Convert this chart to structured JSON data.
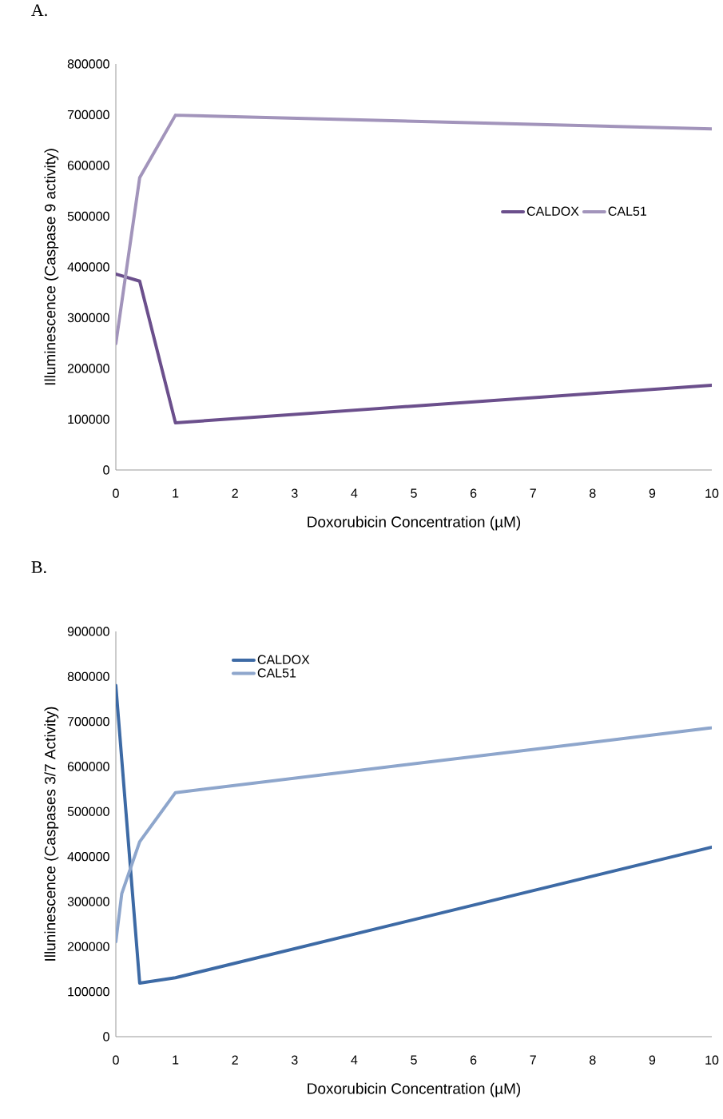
{
  "chart_data": [
    {
      "type": "line",
      "title": "A.",
      "xlabel": "Doxorubicin Concentration (µM)",
      "ylabel": "Illuminescence (Caspase 9 activity)",
      "xlim": [
        0,
        10
      ],
      "xticks": [
        0,
        1,
        2,
        3,
        4,
        5,
        6,
        7,
        8,
        9,
        10
      ],
      "ylim": [
        0,
        800000
      ],
      "yticks": [
        0,
        100000,
        200000,
        300000,
        400000,
        500000,
        600000,
        700000,
        800000
      ],
      "grid": false,
      "legend": "right",
      "marker": "none",
      "line_style": "solid",
      "series": [
        {
          "name": "CALDOX",
          "color": "#6b4f8c",
          "x": [
            0,
            0.4,
            1,
            10
          ],
          "values": [
            386000,
            372000,
            93000,
            167000
          ]
        },
        {
          "name": "CAL51",
          "color": "#a294bb",
          "x": [
            0,
            0.4,
            1,
            10
          ],
          "values": [
            249000,
            576000,
            699000,
            672000
          ]
        }
      ]
    },
    {
      "type": "line",
      "title": "B.",
      "xlabel": "Doxorubicin Concentration (µM)",
      "ylabel": "Illuninescence (Caspases 3/7 Activity)",
      "xlim": [
        0,
        10
      ],
      "xticks": [
        0,
        1,
        2,
        3,
        4,
        5,
        6,
        7,
        8,
        9,
        10
      ],
      "ylim": [
        0,
        900000
      ],
      "yticks": [
        0,
        100000,
        200000,
        300000,
        400000,
        500000,
        600000,
        700000,
        800000,
        900000
      ],
      "grid": false,
      "legend": "top left",
      "marker": "none",
      "line_style": "solid",
      "series": [
        {
          "name": "CALDOX",
          "color": "#3d6aa5",
          "x": [
            0,
            0.4,
            1,
            10
          ],
          "values": [
            780000,
            119000,
            131000,
            421000
          ]
        },
        {
          "name": "CAL51",
          "color": "#8ea6cc",
          "x": [
            0,
            0.1,
            0.4,
            1,
            10
          ],
          "values": [
            211000,
            318000,
            433000,
            542000,
            686000
          ]
        }
      ]
    }
  ]
}
